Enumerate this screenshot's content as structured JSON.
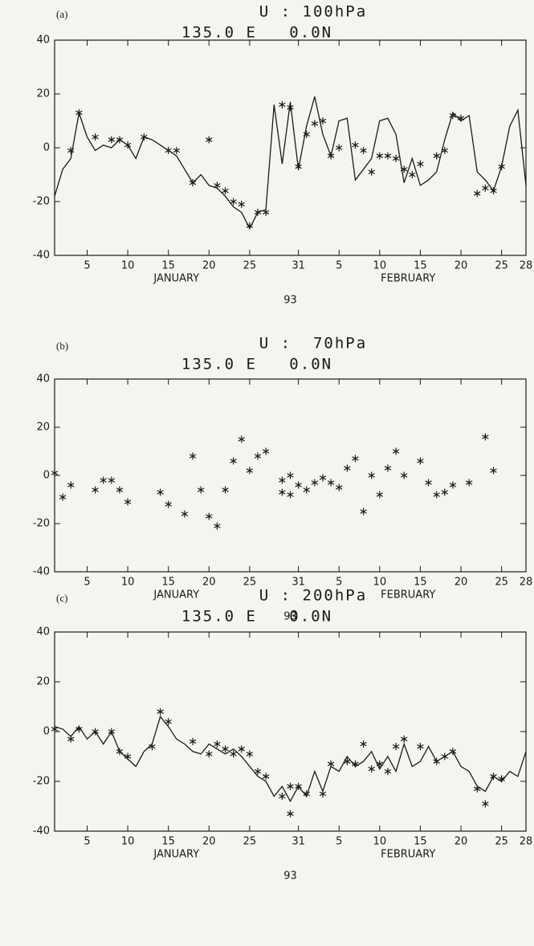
{
  "chart_data": [
    {
      "type": "line",
      "panel_label": "(a)",
      "title": "U : 100hPa",
      "subtitle": "135.0 E   0.0N",
      "month_labels": [
        "JANUARY",
        "FEBRUARY"
      ],
      "xlabel": "93",
      "xlim": [
        1,
        59
      ],
      "ylim": [
        -40,
        40
      ],
      "xticks": [
        5,
        10,
        15,
        20,
        25,
        31,
        {
          "value": 36,
          "label": "5"
        },
        {
          "value": 41,
          "label": "10"
        },
        {
          "value": 46,
          "label": "15"
        },
        {
          "value": 51,
          "label": "20"
        },
        {
          "value": 56,
          "label": "25"
        },
        {
          "value": 59,
          "label": "28"
        }
      ],
      "yticks": [
        -40,
        -20,
        0,
        20,
        40
      ],
      "series": [
        {
          "type": "line",
          "color": "#1a1a1a",
          "x": [
            1,
            2,
            3,
            4,
            5,
            6,
            7,
            8,
            9,
            10,
            11,
            12,
            13,
            14,
            15,
            16,
            17,
            18,
            19,
            20,
            21,
            22,
            23,
            24,
            25,
            26,
            27,
            28,
            29,
            30,
            31,
            32,
            33,
            34,
            35,
            36,
            37,
            38,
            39,
            40,
            41,
            42,
            43,
            44,
            45,
            46,
            47,
            48,
            49,
            50,
            51,
            52,
            53,
            54,
            55,
            56,
            57,
            58,
            59
          ],
          "values": [
            -18,
            -8,
            -4,
            13,
            4,
            -1,
            1,
            0,
            3,
            1,
            -4,
            4,
            3,
            1,
            -1,
            -3,
            -8,
            -13,
            -10,
            -14,
            -15,
            -18,
            -22,
            -24,
            -30,
            -24,
            -23,
            16,
            -6,
            17,
            -8,
            8,
            19,
            5,
            -3,
            10,
            11,
            -12,
            -8,
            -4,
            10,
            11,
            5,
            -13,
            -4,
            -14,
            -12,
            -9,
            3,
            13,
            10,
            12,
            -9,
            -12,
            -16,
            -7,
            8,
            14,
            -14
          ]
        },
        {
          "type": "scatter",
          "color": "#1a1a1a",
          "x": [
            3,
            4,
            6,
            8,
            9,
            10,
            12,
            15,
            16,
            18,
            20,
            21,
            22,
            23,
            24,
            25,
            26,
            27,
            29,
            30,
            31,
            32,
            33,
            34,
            35,
            36,
            38,
            39,
            40,
            41,
            42,
            43,
            44,
            45,
            46,
            48,
            49,
            50,
            51,
            53,
            54,
            55,
            56
          ],
          "values": [
            -1,
            13,
            4,
            3,
            3,
            1,
            4,
            -1,
            -1,
            -13,
            3,
            -14,
            -16,
            -20,
            -21,
            -29,
            -24,
            -24,
            16,
            15,
            -7,
            5,
            9,
            10,
            -3,
            0,
            1,
            -1,
            -9,
            -3,
            -3,
            -4,
            -8,
            -10,
            -6,
            -3,
            -1,
            12,
            11,
            -17,
            -15,
            -16,
            -7
          ]
        }
      ]
    },
    {
      "type": "scatter",
      "panel_label": "(b)",
      "title": "U :  70hPa",
      "subtitle": "135.0 E   0.0N",
      "month_labels": [
        "JANUARY",
        "FEBRUARY"
      ],
      "xlabel": "93",
      "xlim": [
        1,
        59
      ],
      "ylim": [
        -40,
        40
      ],
      "xticks": [
        5,
        10,
        15,
        20,
        25,
        31,
        {
          "value": 36,
          "label": "5"
        },
        {
          "value": 41,
          "label": "10"
        },
        {
          "value": 46,
          "label": "15"
        },
        {
          "value": 51,
          "label": "20"
        },
        {
          "value": 56,
          "label": "25"
        },
        {
          "value": 59,
          "label": "28"
        }
      ],
      "yticks": [
        -40,
        -20,
        0,
        20,
        40
      ],
      "series": [
        {
          "type": "scatter",
          "color": "#1a1a1a",
          "x": [
            1,
            2,
            3,
            6,
            7,
            8,
            9,
            10,
            14,
            15,
            17,
            18,
            19,
            20,
            21,
            22,
            23,
            24,
            25,
            26,
            27,
            29,
            29,
            30,
            30,
            31,
            32,
            33,
            34,
            35,
            36,
            37,
            38,
            39,
            40,
            41,
            42,
            43,
            44,
            46,
            47,
            48,
            49,
            50,
            52,
            54,
            55
          ],
          "values": [
            1,
            -9,
            -4,
            -6,
            -2,
            -2,
            -6,
            -11,
            -7,
            -12,
            -16,
            8,
            -6,
            -17,
            -21,
            -6,
            6,
            15,
            2,
            8,
            10,
            -2,
            -7,
            0,
            -8,
            -4,
            -6,
            -3,
            -1,
            -3,
            -5,
            3,
            7,
            -15,
            0,
            -8,
            3,
            10,
            0,
            6,
            -3,
            -8,
            -7,
            -4,
            -3,
            16,
            2
          ]
        }
      ]
    },
    {
      "type": "line",
      "panel_label": "(c)",
      "title": "U : 200hPa",
      "subtitle": "135.0 E   0.0N",
      "month_labels": [
        "JANUARY",
        "FEBRUARY"
      ],
      "xlabel": "93",
      "xlim": [
        1,
        59
      ],
      "ylim": [
        -40,
        40
      ],
      "xticks": [
        5,
        10,
        15,
        20,
        25,
        31,
        {
          "value": 36,
          "label": "5"
        },
        {
          "value": 41,
          "label": "10"
        },
        {
          "value": 46,
          "label": "15"
        },
        {
          "value": 51,
          "label": "20"
        },
        {
          "value": 56,
          "label": "25"
        },
        {
          "value": 59,
          "label": "28"
        }
      ],
      "yticks": [
        -40,
        -20,
        0,
        20,
        40
      ],
      "series": [
        {
          "type": "line",
          "color": "#1a1a1a",
          "x": [
            1,
            2,
            3,
            4,
            5,
            6,
            7,
            8,
            9,
            10,
            11,
            12,
            13,
            14,
            15,
            16,
            17,
            18,
            19,
            20,
            21,
            22,
            23,
            24,
            25,
            26,
            27,
            28,
            29,
            30,
            31,
            32,
            33,
            34,
            35,
            36,
            37,
            38,
            39,
            40,
            41,
            42,
            43,
            44,
            45,
            46,
            47,
            48,
            49,
            50,
            51,
            52,
            53,
            54,
            55,
            56,
            57,
            58,
            59
          ],
          "values": [
            2,
            1,
            -2,
            2,
            -3,
            0,
            -5,
            0,
            -8,
            -11,
            -14,
            -8,
            -5,
            6,
            2,
            -3,
            -5,
            -8,
            -9,
            -5,
            -7,
            -9,
            -7,
            -10,
            -14,
            -18,
            -20,
            -26,
            -22,
            -28,
            -22,
            -26,
            -16,
            -24,
            -14,
            -16,
            -10,
            -14,
            -12,
            -8,
            -15,
            -10,
            -16,
            -5,
            -14,
            -12,
            -6,
            -12,
            -10,
            -8,
            -14,
            -16,
            -22,
            -24,
            -18,
            -20,
            -16,
            -18,
            -8
          ]
        },
        {
          "type": "scatter",
          "color": "#1a1a1a",
          "x": [
            1,
            3,
            4,
            6,
            8,
            9,
            10,
            13,
            14,
            15,
            18,
            20,
            21,
            22,
            23,
            24,
            25,
            26,
            27,
            29,
            30,
            30,
            31,
            32,
            34,
            35,
            37,
            38,
            39,
            40,
            41,
            42,
            43,
            44,
            46,
            48,
            49,
            50,
            53,
            54,
            55,
            56
          ],
          "values": [
            1,
            -3,
            1,
            0,
            0,
            -8,
            -10,
            -6,
            8,
            4,
            -4,
            -9,
            -5,
            -7,
            -9,
            -7,
            -9,
            -16,
            -18,
            -26,
            -33,
            -22,
            -22,
            -25,
            -25,
            -13,
            -12,
            -13,
            -5,
            -15,
            -13,
            -16,
            -6,
            -3,
            -6,
            -12,
            -10,
            -8,
            -23,
            -29,
            -18,
            -19
          ]
        }
      ]
    }
  ]
}
